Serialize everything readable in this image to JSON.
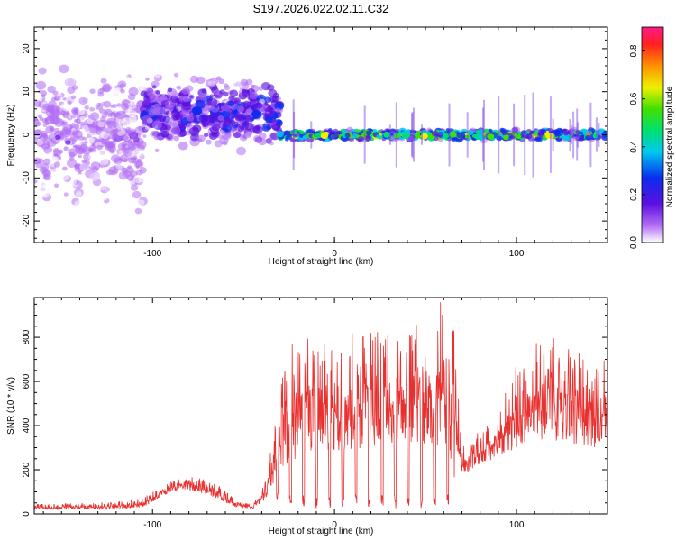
{
  "title": "S197.2026.022.02.11.C32",
  "chart_data": [
    {
      "type": "heatmap",
      "name": "spectrogram",
      "xlabel": "Height of straight line (km)",
      "ylabel": "Frequency (Hz)",
      "xlim": [
        -165,
        150
      ],
      "ylim": [
        -25,
        25
      ],
      "xticks": [
        -100,
        0,
        100
      ],
      "yticks": [
        -20,
        -10,
        0,
        10,
        20
      ],
      "colorbar": {
        "label": "Normalized spectral amplitude",
        "range": [
          0.0,
          0.9
        ],
        "ticks": [
          0.0,
          0.2,
          0.4,
          0.6,
          0.8
        ],
        "colormap": "rainbow-reversed"
      },
      "regions": [
        {
          "x_range": [
            -165,
            -105
          ],
          "freq_center": 0,
          "freq_spread": 22,
          "amplitude": 0.12
        },
        {
          "x_range": [
            -105,
            -30
          ],
          "freq_center": 5,
          "freq_spread": 10,
          "amplitude": 0.25
        },
        {
          "x_range": [
            -30,
            150
          ],
          "freq_center": 0,
          "freq_spread": 1.5,
          "amplitude": 0.55
        }
      ]
    },
    {
      "type": "line",
      "name": "snr",
      "xlabel": "Height of straight line (km)",
      "ylabel": "SNR (10 * v/v)",
      "xlim": [
        -165,
        150
      ],
      "ylim": [
        0,
        980
      ],
      "xticks": [
        -100,
        0,
        100
      ],
      "yticks": [
        0,
        200,
        400,
        600,
        800
      ],
      "series_color": "#e8302f",
      "envelope": {
        "x": [
          -165,
          -140,
          -120,
          -105,
          -95,
          -85,
          -75,
          -65,
          -55,
          -45,
          -38,
          -33,
          -28,
          -20,
          -10,
          0,
          10,
          20,
          30,
          40,
          50,
          60,
          66,
          70,
          80,
          90,
          100,
          110,
          120,
          130,
          140,
          150
        ],
        "baseline": [
          20,
          20,
          22,
          30,
          80,
          110,
          100,
          70,
          30,
          25,
          60,
          150,
          200,
          250,
          300,
          280,
          290,
          300,
          320,
          320,
          310,
          300,
          140,
          180,
          220,
          250,
          300,
          340,
          330,
          320,
          300,
          260
        ],
        "peak": [
          45,
          50,
          55,
          80,
          130,
          160,
          170,
          140,
          70,
          40,
          150,
          400,
          700,
          860,
          800,
          780,
          820,
          840,
          860,
          860,
          880,
          980,
          820,
          300,
          380,
          450,
          700,
          780,
          800,
          760,
          700,
          700
        ]
      }
    }
  ]
}
